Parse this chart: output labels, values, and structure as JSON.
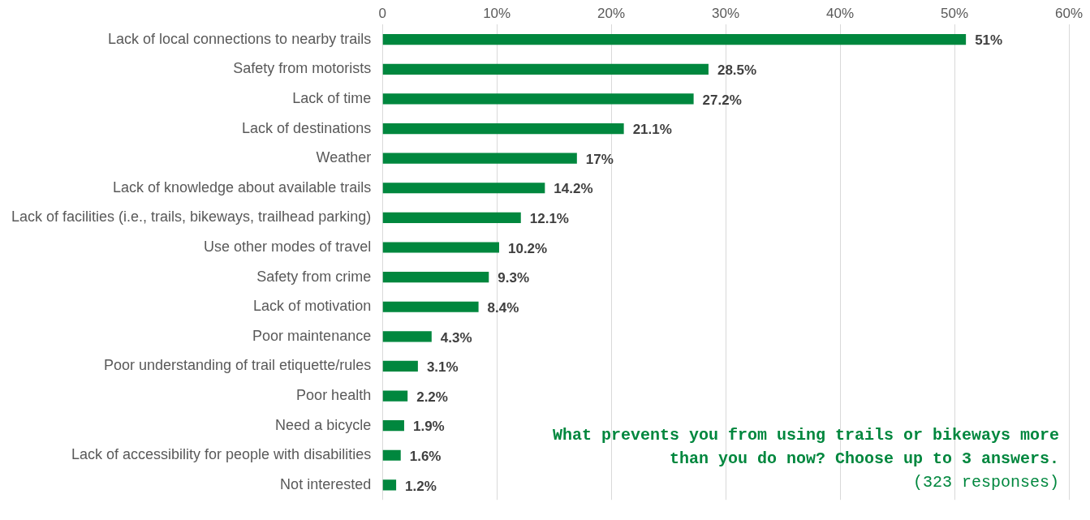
{
  "chart_data": {
    "type": "bar",
    "orientation": "horizontal",
    "title": "What prevents you from using trails or bikeways more than you do now? Choose up to 3 answers.",
    "subtitle": "(323 responses)",
    "categories": [
      "Lack of local connections to nearby trails",
      "Safety from motorists",
      "Lack of time",
      "Lack of destinations",
      "Weather",
      "Lack of knowledge about available trails",
      "Lack of facilities (i.e., trails, bikeways, trailhead parking)",
      "Use other modes of travel",
      "Safety from crime",
      "Lack of motivation",
      "Poor maintenance",
      "Poor understanding of trail etiquette/rules",
      "Poor health",
      "Need a bicycle",
      "Lack of accessibility for people with disabilities",
      "Not interested"
    ],
    "values": [
      51,
      28.5,
      27.2,
      21.1,
      17,
      14.2,
      12.1,
      10.2,
      9.3,
      8.4,
      4.3,
      3.1,
      2.2,
      1.9,
      1.6,
      1.2
    ],
    "value_labels": [
      "51%",
      "28.5%",
      "27.2%",
      "21.1%",
      "17%",
      "14.2%",
      "12.1%",
      "10.2%",
      "9.3%",
      "8.4%",
      "4.3%",
      "3.1%",
      "2.2%",
      "1.9%",
      "1.6%",
      "1.2%"
    ],
    "color": "#00873e",
    "xlim": [
      0,
      60
    ],
    "xticks": [
      0,
      {
        "value": 10,
        "label": "10%"
      },
      {
        "value": 20,
        "label": "20%"
      },
      {
        "value": 30,
        "label": "30%"
      },
      {
        "value": 40,
        "label": "40%"
      },
      {
        "value": 50,
        "label": "50%"
      },
      {
        "value": 60,
        "label": "60%"
      }
    ],
    "grid": "x"
  }
}
